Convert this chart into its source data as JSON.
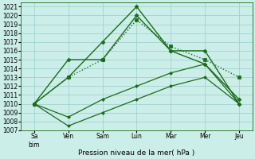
{
  "x_labels": [
    "Sa\nbim",
    "Ven",
    "Sam",
    "Lun",
    "Mar",
    "Mer",
    "Jeu"
  ],
  "x_positions": [
    0,
    1,
    2,
    3,
    4,
    5,
    6
  ],
  "ylim": [
    1007,
    1021.5
  ],
  "yticks": [
    1007,
    1008,
    1009,
    1010,
    1011,
    1012,
    1013,
    1014,
    1015,
    1016,
    1017,
    1018,
    1019,
    1020,
    1021
  ],
  "line1_solid": {
    "x": [
      0,
      1,
      2,
      3,
      4,
      5,
      6
    ],
    "y": [
      1010.0,
      1015.0,
      1015.0,
      1020.0,
      1016.0,
      1014.5,
      1010.5
    ],
    "color": "#1a6b1a",
    "linestyle": "solid",
    "marker": "D",
    "markersize": 2.5,
    "linewidth": 1.0
  },
  "line2_dotted": {
    "x": [
      0,
      1,
      2,
      3,
      4,
      5,
      6
    ],
    "y": [
      1010.0,
      1013.0,
      1015.0,
      1019.5,
      1016.5,
      1015.0,
      1013.0
    ],
    "color": "#1a6b1a",
    "linestyle": "dotted",
    "marker": "s",
    "markersize": 2.5,
    "linewidth": 1.0
  },
  "line3_peak": {
    "x": [
      0,
      1,
      2,
      3,
      4,
      5,
      6
    ],
    "y": [
      1010.0,
      1013.0,
      1017.0,
      1021.0,
      1016.0,
      1016.0,
      1010.0
    ],
    "color": "#1a6b1a",
    "linestyle": "solid",
    "marker": "D",
    "markersize": 2.5,
    "linewidth": 1.0
  },
  "line4_low1": {
    "x": [
      0,
      1,
      2,
      3,
      4,
      5,
      6
    ],
    "y": [
      1010.0,
      1007.5,
      1009.0,
      1010.5,
      1012.0,
      1013.0,
      1010.0
    ],
    "color": "#1a6b1a",
    "linestyle": "solid",
    "marker": "D",
    "markersize": 2.0,
    "linewidth": 0.9
  },
  "line5_low2": {
    "x": [
      0,
      1,
      2,
      3,
      4,
      5,
      6
    ],
    "y": [
      1010.0,
      1008.5,
      1010.5,
      1012.0,
      1013.5,
      1014.5,
      1010.0
    ],
    "color": "#1a6b1a",
    "linestyle": "solid",
    "marker": "D",
    "markersize": 2.0,
    "linewidth": 0.9
  },
  "background_color": "#cceee8",
  "grid_color": "#99cccc",
  "xlabel": "Pression niveau de la mer( hPa )",
  "xlabel_fontsize": 6.5,
  "tick_fontsize": 5.5,
  "line_color": "#1a6b1a"
}
